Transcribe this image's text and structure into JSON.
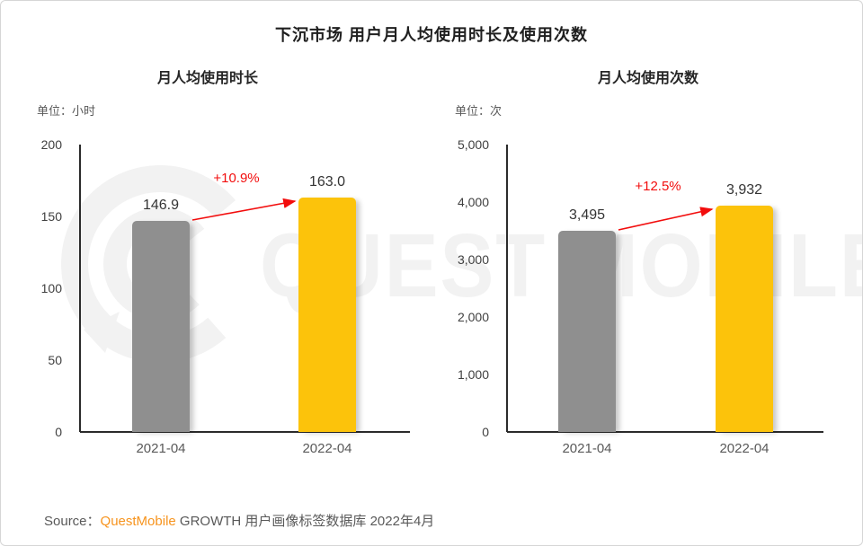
{
  "page": {
    "title": "下沉市场 用户月人均使用时长及使用次数",
    "watermark": {
      "text": "QUEST MOBILE",
      "logo": "questmobile-logo"
    },
    "source": {
      "prefix": "Source：",
      "brand": "QuestMobile",
      "suffix": " GROWTH 用户画像标签数据库 2022年4月"
    }
  },
  "colors": {
    "bar_previous": "#8F8F8F",
    "bar_current": "#FCC30B",
    "growth_red": "#F20D0D",
    "brand_orange": "#F7941E",
    "axis": "#2B2B2B",
    "tick_text": "#404040",
    "category_text": "#595959",
    "watermark": "#F2F2F2"
  },
  "chart_data": [
    {
      "type": "bar",
      "title": "月人均使用时长",
      "unit_label": "单位：小时",
      "categories": [
        "2021-04",
        "2022-04"
      ],
      "values": [
        146.9,
        163.0
      ],
      "value_labels": [
        "146.9",
        "163.0"
      ],
      "growth_label": "+10.9%",
      "ylim": [
        0,
        200
      ],
      "yticks": [
        "200",
        "150",
        "100",
        "50",
        "0"
      ],
      "bar_colors": [
        "#8F8F8F",
        "#FCC30B"
      ],
      "grid": false,
      "legend": "none"
    },
    {
      "type": "bar",
      "title": "月人均使用次数",
      "unit_label": "单位：次",
      "categories": [
        "2021-04",
        "2022-04"
      ],
      "values": [
        3495,
        3932
      ],
      "value_labels": [
        "3,495",
        "3,932"
      ],
      "growth_label": "+12.5%",
      "ylim": [
        0,
        5000
      ],
      "yticks": [
        "5,000",
        "4,000",
        "3,000",
        "2,000",
        "1,000",
        "0"
      ],
      "bar_colors": [
        "#8F8F8F",
        "#FCC30B"
      ],
      "grid": false,
      "legend": "none"
    }
  ]
}
